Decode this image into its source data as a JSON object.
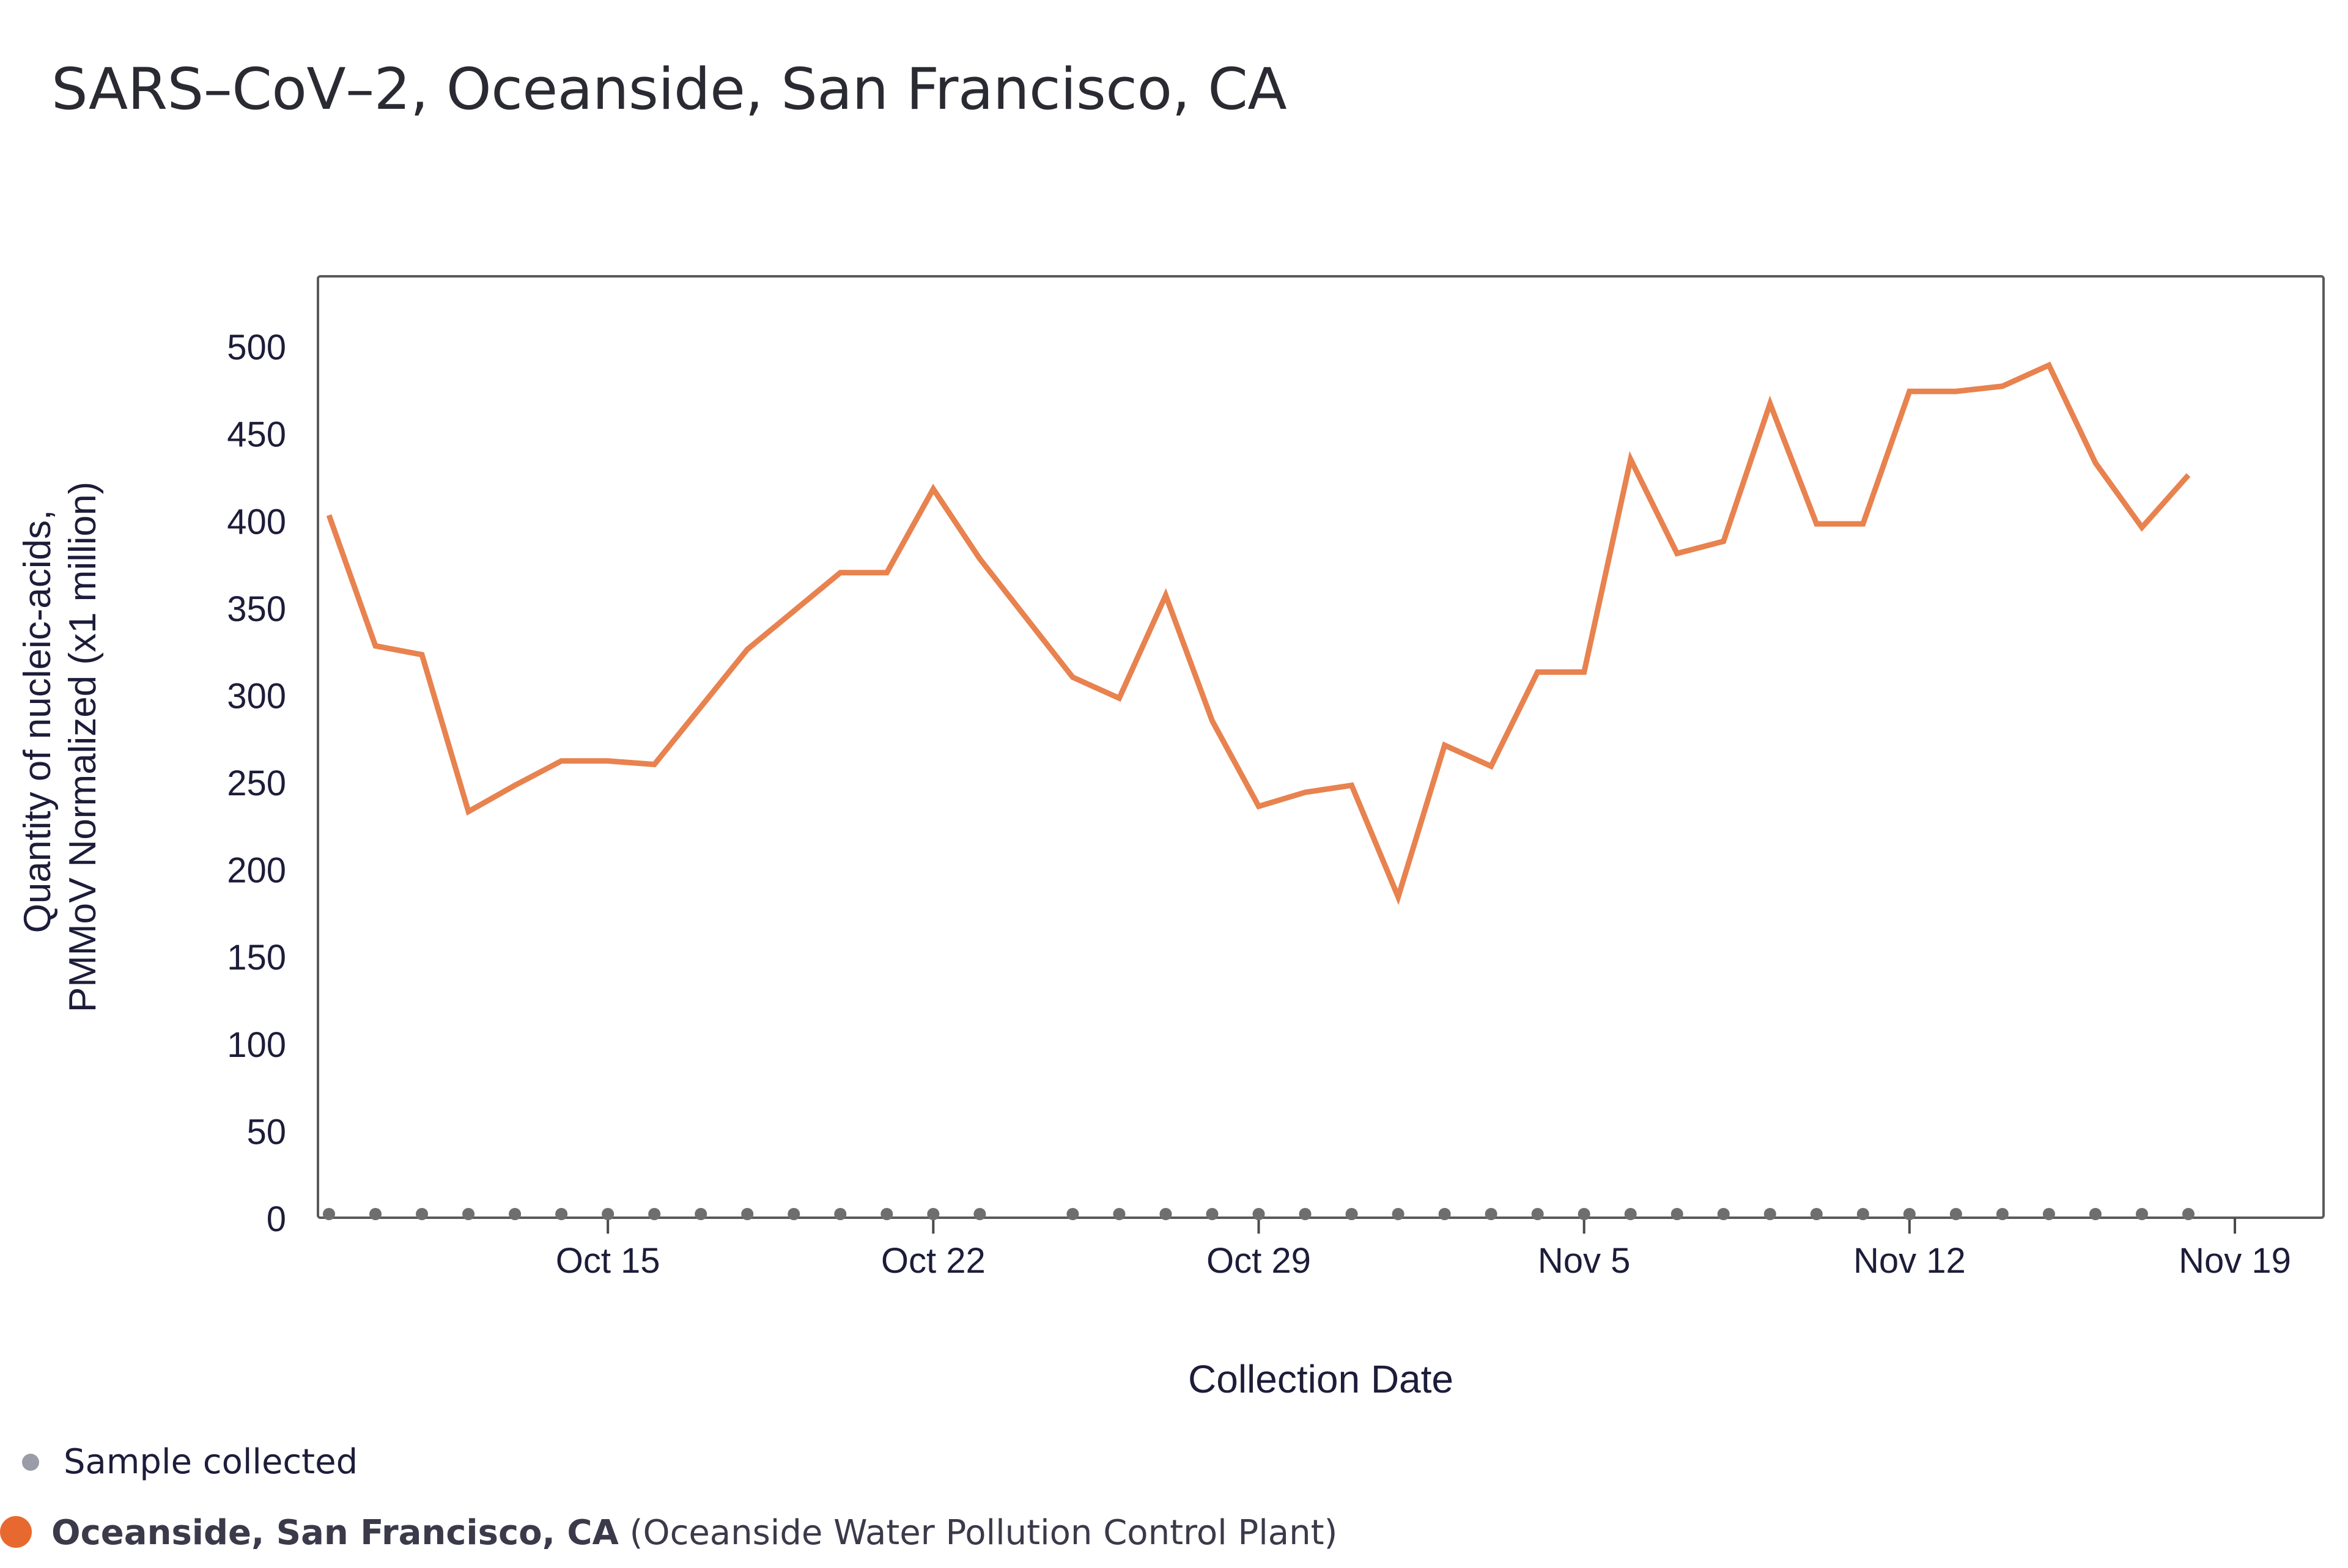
{
  "chart_data": {
    "type": "line",
    "title": "SARS–CoV–2, Oceanside, San Francisco, CA",
    "xlabel": "Collection Date",
    "ylabel_line1": "Quantity of nucleic-acids,",
    "ylabel_line2": "PMMoV Normalized (x1 million)",
    "ylim": [
      0,
      540
    ],
    "yticks": [
      0,
      50,
      100,
      150,
      200,
      250,
      300,
      350,
      400,
      450,
      500
    ],
    "x_domain": [
      "2023-10-09",
      "2023-11-20"
    ],
    "xticks": [
      {
        "date": "2023-10-15",
        "label": "Oct 15"
      },
      {
        "date": "2023-10-22",
        "label": "Oct 22"
      },
      {
        "date": "2023-10-29",
        "label": "Oct 29"
      },
      {
        "date": "2023-11-05",
        "label": "Nov 5"
      },
      {
        "date": "2023-11-12",
        "label": "Nov 12"
      },
      {
        "date": "2023-11-19",
        "label": "Nov 19"
      }
    ],
    "series": [
      {
        "name": "Oceanside, San Francisco, CA",
        "color": "#e8824f",
        "points": [
          {
            "x": "2023-10-09",
            "y": 403
          },
          {
            "x": "2023-10-10",
            "y": 328
          },
          {
            "x": "2023-10-11",
            "y": 323
          },
          {
            "x": "2023-10-12",
            "y": 233
          },
          {
            "x": "2023-10-13",
            "y": 248
          },
          {
            "x": "2023-10-14",
            "y": 262
          },
          {
            "x": "2023-10-15",
            "y": 262
          },
          {
            "x": "2023-10-16",
            "y": 260
          },
          {
            "x": "2023-10-17",
            "y": 293
          },
          {
            "x": "2023-10-18",
            "y": 326
          },
          {
            "x": "2023-10-19",
            "y": 348
          },
          {
            "x": "2023-10-20",
            "y": 370
          },
          {
            "x": "2023-10-21",
            "y": 370
          },
          {
            "x": "2023-10-22",
            "y": 418
          },
          {
            "x": "2023-10-23",
            "y": 378
          },
          {
            "x": "2023-10-25",
            "y": 310
          },
          {
            "x": "2023-10-26",
            "y": 298
          },
          {
            "x": "2023-10-27",
            "y": 357
          },
          {
            "x": "2023-10-28",
            "y": 285
          },
          {
            "x": "2023-10-29",
            "y": 236
          },
          {
            "x": "2023-10-30",
            "y": 244
          },
          {
            "x": "2023-10-31",
            "y": 248
          },
          {
            "x": "2023-11-01",
            "y": 184
          },
          {
            "x": "2023-11-02",
            "y": 271
          },
          {
            "x": "2023-11-03",
            "y": 259
          },
          {
            "x": "2023-11-04",
            "y": 313
          },
          {
            "x": "2023-11-05",
            "y": 313
          },
          {
            "x": "2023-11-06",
            "y": 435
          },
          {
            "x": "2023-11-07",
            "y": 381
          },
          {
            "x": "2023-11-08",
            "y": 388
          },
          {
            "x": "2023-11-09",
            "y": 467
          },
          {
            "x": "2023-11-10",
            "y": 398
          },
          {
            "x": "2023-11-11",
            "y": 398
          },
          {
            "x": "2023-11-12",
            "y": 474
          },
          {
            "x": "2023-11-13",
            "y": 474
          },
          {
            "x": "2023-11-14",
            "y": 477
          },
          {
            "x": "2023-11-15",
            "y": 489
          },
          {
            "x": "2023-11-16",
            "y": 433
          },
          {
            "x": "2023-11-17",
            "y": 396
          },
          {
            "x": "2023-11-18",
            "y": 426
          }
        ]
      }
    ],
    "sample_dates": [
      "2023-10-09",
      "2023-10-10",
      "2023-10-11",
      "2023-10-12",
      "2023-10-13",
      "2023-10-14",
      "2023-10-15",
      "2023-10-16",
      "2023-10-17",
      "2023-10-18",
      "2023-10-19",
      "2023-10-20",
      "2023-10-21",
      "2023-10-22",
      "2023-10-23",
      "2023-10-25",
      "2023-10-26",
      "2023-10-27",
      "2023-10-28",
      "2023-10-29",
      "2023-10-30",
      "2023-10-31",
      "2023-11-01",
      "2023-11-02",
      "2023-11-03",
      "2023-11-04",
      "2023-11-05",
      "2023-11-06",
      "2023-11-07",
      "2023-11-08",
      "2023-11-09",
      "2023-11-10",
      "2023-11-11",
      "2023-11-12",
      "2023-11-13",
      "2023-11-14",
      "2023-11-15",
      "2023-11-16",
      "2023-11-17",
      "2023-11-18"
    ],
    "sample_marker_color": "#6e6e6e",
    "grid": false,
    "legend": {
      "placement": "bottom-left",
      "sample_label": "Sample collected",
      "sample_color": "#9a9ca8",
      "series_label_bold": "Oceanside, San Francisco, CA",
      "series_label_rest": "(Oceanside Water Pollution Control Plant)",
      "series_color": "#e8692f"
    }
  }
}
